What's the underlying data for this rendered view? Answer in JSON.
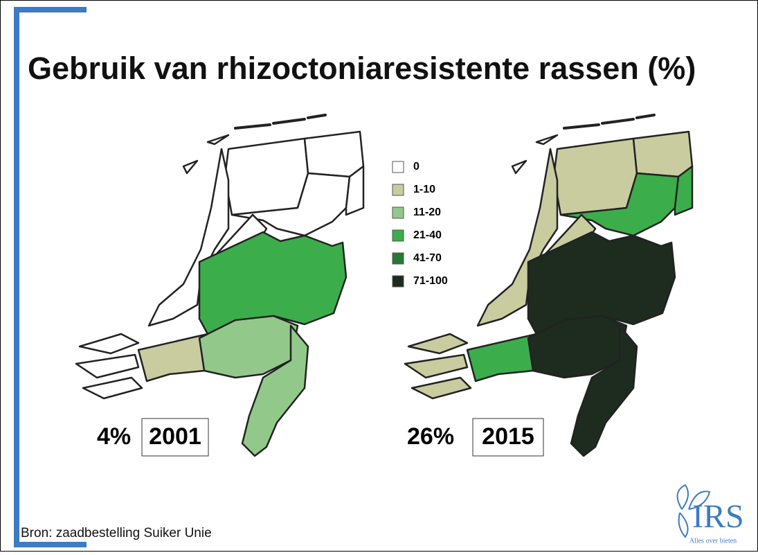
{
  "title": "Gebruik van rhizoctoniaresistente rassen (%)",
  "legend": [
    {
      "label": "0",
      "color": "#ffffff"
    },
    {
      "label": "1-10",
      "color": "#c9cc9f"
    },
    {
      "label": "11-20",
      "color": "#92c98b"
    },
    {
      "label": "21-40",
      "color": "#3cad4b"
    },
    {
      "label": "41-70",
      "color": "#247a36"
    },
    {
      "label": "71-100",
      "color": "#1d2c1e"
    }
  ],
  "maps": [
    {
      "share": "4%",
      "year": "2001"
    },
    {
      "share": "26%",
      "year": "2015"
    }
  ],
  "source": "Bron: zaadbestelling Suiker Unie",
  "logo": {
    "name": "IRS",
    "tagline": "Alles over bieten"
  }
}
